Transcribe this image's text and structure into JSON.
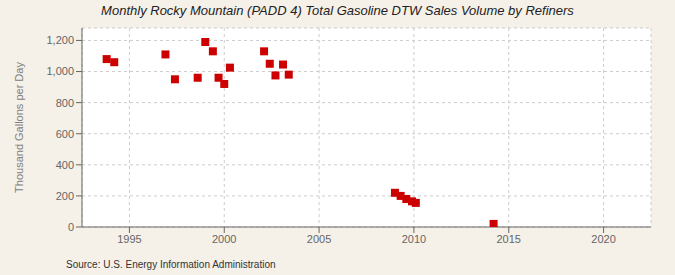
{
  "chart_data": {
    "type": "scatter",
    "title": "Monthly Rocky Mountain (PADD 4) Total Gasoline DTW Sales Volume by Refiners",
    "y_label": "Thousand Gallons per Day",
    "annotations": [
      "Source: U.S. Energy Information Administration"
    ],
    "x": [
      1993.8,
      1994.2,
      1996.9,
      1997.4,
      1998.6,
      1999.0,
      1999.4,
      1999.7,
      2000.0,
      2000.3,
      2002.1,
      2002.4,
      2002.7,
      2003.1,
      2003.4,
      2009.0,
      2009.3,
      2009.6,
      2009.9,
      2010.1,
      2014.2
    ],
    "values": [
      1080,
      1060,
      1110,
      950,
      960,
      1190,
      1130,
      960,
      920,
      1025,
      1130,
      1050,
      975,
      1045,
      980,
      220,
      200,
      180,
      165,
      155,
      20
    ],
    "color": "#cc0000",
    "marker": "square",
    "xlim": [
      1992.5,
      2022.5
    ],
    "ylim": [
      0,
      1280
    ],
    "xticks": [
      1995,
      2000,
      2005,
      2010,
      2015,
      2020
    ],
    "yticks": [
      0,
      200,
      400,
      600,
      800,
      {
        "value": 1000,
        "label": "1,000"
      },
      {
        "value": 1200,
        "label": "1,200"
      }
    ],
    "grid": true
  }
}
